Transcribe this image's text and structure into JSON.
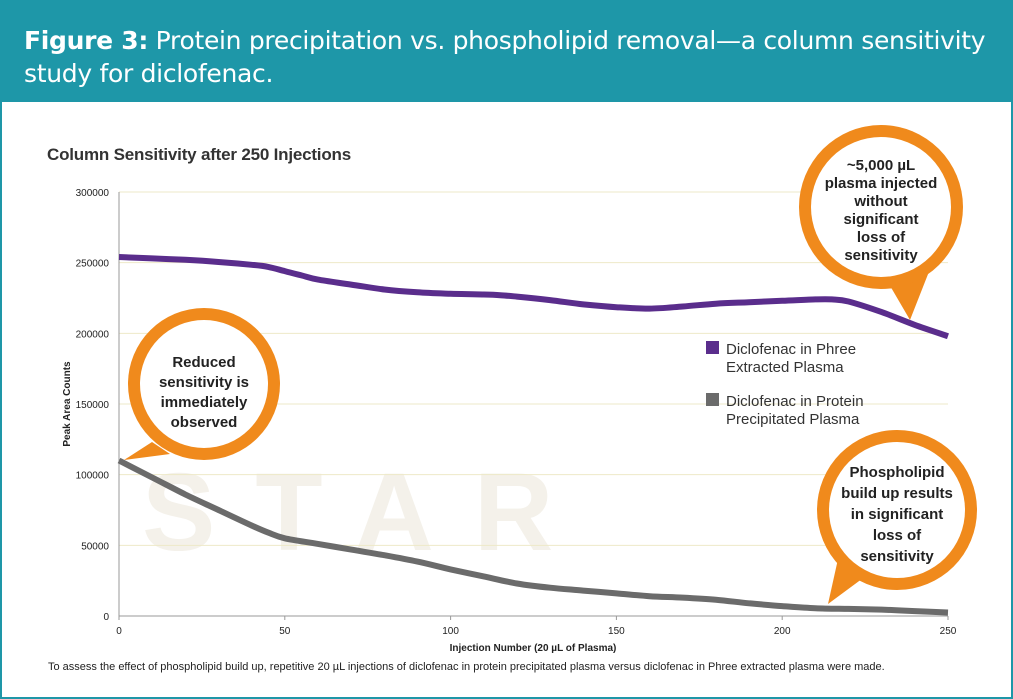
{
  "header": {
    "figure_label": "Figure 3:",
    "caption": " Protein precipitation vs. phospholipid removal—a column sensitivity study for diclofenac."
  },
  "footnote": "To assess the effect of phospholipid build up, repetitive 20 µL injections of diclofenac in protein precipitated plasma versus diclofenac in Phree extracted plasma were made.",
  "colors": {
    "header_bg": "#1e97a8",
    "phree": "#5a2d8c",
    "protein": "#6b6b6b",
    "bubble": "#f08a1c"
  },
  "watermark": "STAR",
  "chart_data": {
    "type": "line",
    "title": "Column Sensitivity after 250 Injections",
    "xlabel": "Injection Number (20 µL of Plasma)",
    "ylabel": "Peak Area Counts",
    "xlim": [
      0,
      250
    ],
    "ylim": [
      0,
      300000
    ],
    "xticks": [
      "0",
      "50",
      "100",
      "150",
      "200",
      "250"
    ],
    "yticks": [
      "0",
      "50000",
      "100000",
      "150000",
      "200000",
      "250000",
      "300000"
    ],
    "grid": true,
    "legend_position": "right",
    "series": [
      {
        "name_line1": "Diclofenac in Phree",
        "name_line2": "Extracted Plasma",
        "color": "#5a2d8c",
        "x": [
          0,
          10,
          20,
          30,
          40,
          45,
          50,
          55,
          60,
          70,
          80,
          90,
          100,
          110,
          115,
          120,
          130,
          140,
          150,
          160,
          170,
          180,
          190,
          200,
          210,
          215,
          220,
          230,
          240,
          250
        ],
        "y": [
          254000,
          253000,
          252000,
          250500,
          248500,
          247000,
          244000,
          241000,
          238000,
          234500,
          231000,
          229000,
          228000,
          227500,
          227000,
          226000,
          223500,
          220500,
          218500,
          217500,
          219000,
          221000,
          222000,
          223000,
          224000,
          224000,
          222500,
          215000,
          206000,
          198000
        ]
      },
      {
        "name_line1": "Diclofenac in Protein",
        "name_line2": "Precipitated Plasma",
        "color": "#6b6b6b",
        "x": [
          0,
          10,
          20,
          30,
          40,
          45,
          50,
          60,
          70,
          80,
          90,
          100,
          110,
          120,
          130,
          140,
          150,
          160,
          170,
          180,
          190,
          200,
          210,
          220,
          230,
          240,
          250
        ],
        "y": [
          110000,
          98000,
          86000,
          75000,
          64000,
          59000,
          55000,
          51000,
          47000,
          43000,
          38500,
          33000,
          28000,
          23000,
          20000,
          18000,
          16000,
          14000,
          13000,
          11500,
          9000,
          7000,
          5500,
          5000,
          4500,
          3500,
          2500
        ]
      }
    ],
    "annotations": [
      {
        "lines": [
          "Reduced",
          "sensitivity is",
          "immediately",
          "observed"
        ]
      },
      {
        "lines": [
          "~5,000 µL",
          "plasma injected",
          "without",
          "significant",
          "loss of",
          "sensitivity"
        ]
      },
      {
        "lines": [
          "Phospholipid",
          "build up results",
          "in significant",
          "loss of",
          "sensitivity"
        ]
      }
    ]
  }
}
